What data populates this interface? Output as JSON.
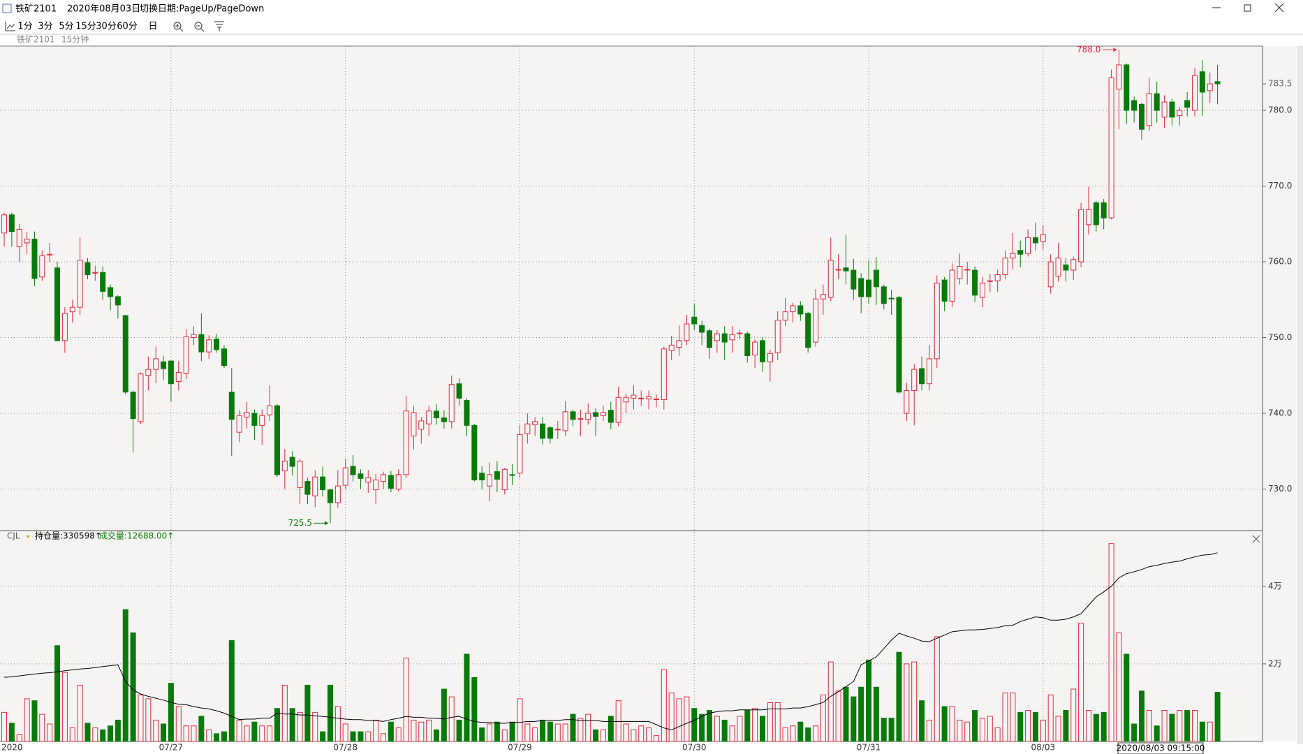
{
  "window": {
    "title": "铁矿2101",
    "date": "2020年08月03日",
    "hint": "切换日期:PageUp/PageDown"
  },
  "toolbar": [
    "1分",
    "3分",
    "5分",
    "15分",
    "30分",
    "60分",
    "日"
  ],
  "subtitle": [
    "铁矿2101",
    "15分钟"
  ],
  "chart_data": {
    "type": "candlestick",
    "categories": [
      "2020",
      null,
      null,
      null,
      null,
      null,
      null,
      null,
      null,
      null,
      null,
      null,
      null,
      null,
      null,
      null,
      null,
      null,
      null,
      null,
      null,
      null,
      "07/27",
      null,
      null,
      null,
      null,
      null,
      null,
      null,
      null,
      null,
      null,
      null,
      null,
      null,
      null,
      null,
      null,
      null,
      null,
      null,
      null,
      null,
      null,
      "07/28",
      null,
      null,
      null,
      null,
      null,
      null,
      null,
      null,
      null,
      null,
      null,
      null,
      null,
      null,
      null,
      null,
      null,
      null,
      null,
      null,
      null,
      null,
      "07/29",
      null,
      null,
      null,
      null,
      null,
      null,
      null,
      null,
      null,
      null,
      null,
      null,
      null,
      null,
      null,
      null,
      null,
      null,
      null,
      null,
      null,
      null,
      "07/30",
      null,
      null,
      null,
      null,
      null,
      null,
      null,
      null,
      null,
      null,
      null,
      null,
      null,
      null,
      null,
      null,
      null,
      null,
      null,
      null,
      null,
      null,
      "07/31",
      null,
      null,
      null,
      null,
      null,
      null,
      null,
      null,
      null,
      null,
      null,
      null,
      null,
      null,
      null,
      null,
      null,
      null,
      null,
      null,
      null,
      null,
      "08/03",
      null,
      null,
      null,
      null,
      null,
      null,
      null,
      null,
      null,
      null,
      null,
      null,
      null,
      null,
      null,
      null,
      null,
      null,
      null,
      null,
      null,
      null,
      null
    ],
    "candles": {
      "open": [
        763.8,
        766.2,
        762,
        762.5,
        763,
        758,
        760.9,
        759.2,
        749.6,
        753.4,
        754,
        759.9,
        758.5,
        758.6,
        756.6,
        755.4,
        752.9,
        742.8,
        738.9,
        745.0,
        745.8,
        746.8,
        746.9,
        744.2,
        745.3,
        750.0,
        750.4,
        748.1,
        749.8,
        748.5,
        742.8,
        737.5,
        739.5,
        740.0,
        738.4,
        739.8,
        741.0,
        732.4,
        734.2,
        730.2,
        731.0,
        729.1,
        731.6,
        729.9,
        728.2,
        730.5,
        733.0,
        732.0,
        730.9,
        729.9,
        731.0,
        731.8,
        730.0,
        731.9,
        737.0,
        737.9,
        738.6,
        740.3,
        739.4,
        738.9,
        743.9,
        741.7,
        738.4,
        732.1,
        730.4,
        732.3,
        729.9,
        731.9,
        732.1,
        737.3,
        738.5,
        738.6,
        738.1,
        737.8,
        737.7,
        740.2,
        739.2,
        739.2,
        740.1,
        739.7,
        740.4,
        738.8,
        741.5,
        742.0,
        741.9,
        741.9,
        741.8,
        741.8,
        748.3,
        748.7,
        749.6,
        752.7,
        751.6,
        750.9,
        749.6,
        750.5,
        749.7,
        750.5,
        750.5,
        747.7,
        749.6,
        746.8,
        748.0,
        752.3,
        753.4,
        754.2,
        753.2,
        749.4,
        755.1,
        755.3,
        758.9,
        759.2,
        758.9,
        757.8,
        757.6,
        758.9,
        756.7,
        755.2,
        755.3,
        740.0,
        743.0,
        745.9,
        743.9,
        747.2,
        757.6,
        754.8,
        757.8,
        758.9,
        758.9,
        755.3,
        757.4,
        757.5,
        758.3,
        760.5,
        761.5,
        761.1,
        763.2,
        762.7,
        756.7,
        758.1,
        759.6,
        758.9,
        760.0,
        764.9,
        767.8,
        767.8,
        765.8,
        782.8,
        786.0,
        781.3,
        780.8,
        778.0,
        782.2,
        779.1,
        781.1,
        779.3,
        781.3,
        780.0,
        785.1,
        782.6,
        783.8
      ],
      "high": [
        766.5,
        766.5,
        765,
        764,
        764,
        761.5,
        762.5,
        760,
        754,
        755,
        763.2,
        760.5,
        759.5,
        759.4,
        757,
        755.6,
        753,
        743,
        745.4,
        747.5,
        748.8,
        747.6,
        747,
        746.9,
        751.1,
        751.5,
        753.2,
        750.3,
        750.5,
        749,
        746,
        740.4,
        741.5,
        740.5,
        740.5,
        743.7,
        741.2,
        735.3,
        735,
        734,
        731.5,
        732.5,
        733,
        730,
        732.5,
        734,
        734.5,
        732.6,
        732.5,
        732,
        732.3,
        732.4,
        732.6,
        742.3,
        741,
        739.5,
        741,
        741.2,
        740.4,
        745,
        744.6,
        742,
        738.6,
        733,
        733.5,
        733.7,
        732.8,
        733.3,
        738.5,
        740,
        739.5,
        739.5,
        738.3,
        739,
        741.6,
        740.5,
        740.5,
        741.3,
        740.7,
        741,
        741.5,
        743.5,
        742.6,
        743.7,
        743,
        743,
        742.5,
        748.8,
        750.2,
        751.6,
        753,
        754.4,
        752.2,
        751.2,
        751,
        751.5,
        751.5,
        751,
        750.8,
        749.8,
        750,
        748.4,
        753.5,
        755.2,
        754.6,
        754.8,
        753.4,
        756.4,
        757,
        763.2,
        761,
        763.6,
        760.4,
        758.5,
        760.2,
        760.6,
        757,
        756.3,
        755.5,
        744,
        746.5,
        747.5,
        749,
        758.2,
        758,
        759.8,
        761.1,
        760,
        759.4,
        758,
        758.4,
        759,
        761.5,
        763.8,
        762.8,
        764.3,
        765.2,
        764.8,
        761,
        762.5,
        760.5,
        760.7,
        767.8,
        769.9,
        768,
        768.3,
        785.4,
        788.0,
        786.2,
        781.8,
        781,
        784.3,
        783.8,
        782,
        781.5,
        780.4,
        782.4,
        785.6,
        786.6,
        785,
        786
      ],
      "low": [
        762,
        762,
        760,
        761,
        756.8,
        757.5,
        760,
        749.5,
        748,
        752,
        753,
        757.7,
        757.5,
        755,
        753.6,
        752.5,
        742.5,
        734.8,
        738.6,
        743,
        744,
        744.4,
        741.5,
        743,
        744.5,
        749,
        746.9,
        747.2,
        748,
        746,
        734.4,
        736.2,
        738,
        736.5,
        735.8,
        739,
        731.6,
        730,
        731.8,
        728,
        728,
        727.6,
        729,
        725.5,
        727.5,
        730,
        731,
        730,
        729.5,
        728,
        730,
        729.6,
        729.7,
        731.5,
        735.2,
        736,
        737,
        738.5,
        738,
        738,
        741,
        737,
        731,
        730,
        728.4,
        729.6,
        729.3,
        730.5,
        731.5,
        736,
        737,
        735.9,
        736,
        736.6,
        737,
        738.3,
        737,
        738.5,
        737,
        739,
        737.9,
        738.3,
        740,
        740.5,
        741,
        740.5,
        740.8,
        740.5,
        747,
        747.6,
        749,
        751,
        749,
        747.2,
        748,
        747,
        748,
        749.8,
        746.7,
        746,
        745.5,
        744.2,
        747,
        751.5,
        752,
        752.2,
        748,
        748.8,
        753,
        754.8,
        757.7,
        757,
        755,
        753.2,
        754.5,
        754.3,
        753.7,
        753,
        742.6,
        739,
        738.4,
        743,
        743,
        746,
        753.5,
        754,
        757,
        757,
        754.7,
        754,
        756,
        756,
        757.7,
        759,
        759.3,
        760.7,
        761.5,
        761.6,
        755.8,
        757.4,
        757.4,
        757.6,
        759.3,
        763.6,
        764,
        764.3,
        765.6,
        777.5,
        778.2,
        778.4,
        776.1,
        777.3,
        778.4,
        777.7,
        778,
        778,
        779.2,
        779.2,
        779.3,
        781,
        780.8
      ],
      "close": [
        766.2,
        764.0,
        764.3,
        763,
        757.8,
        760.8,
        761,
        749.6,
        753.2,
        754.0,
        760.2,
        758.3,
        758.6,
        756.1,
        755.4,
        754.3,
        742.8,
        739.3,
        745.2,
        745.8,
        747.2,
        745.9,
        743.9,
        745.4,
        750.1,
        750.4,
        748.1,
        749.7,
        748.4,
        746.3,
        739.2,
        739.7,
        740.1,
        738.4,
        739.7,
        741.0,
        731.9,
        733.7,
        733.0,
        733.7,
        729.3,
        731.6,
        729.9,
        728.2,
        730.4,
        732.8,
        731.9,
        731.4,
        731.5,
        731.2,
        731.9,
        730.1,
        731.9,
        740.3,
        740.1,
        739.0,
        740.3,
        739.4,
        738.9,
        743.8,
        742.0,
        738.4,
        731.2,
        731.2,
        731.9,
        731.3,
        732.6,
        731.8,
        737.2,
        738.6,
        738.9,
        736.7,
        736.7,
        737.9,
        740.2,
        739.2,
        739.3,
        740.0,
        739.6,
        740.1,
        738.8,
        742.1,
        742.1,
        742.4,
        742.0,
        742.2,
        741.9,
        748.5,
        749.0,
        749.6,
        751.8,
        751.8,
        750.7,
        748.7,
        750.5,
        749.4,
        750.4,
        750.6,
        747.6,
        749.4,
        746.8,
        747.9,
        752.3,
        753.4,
        754.2,
        753.1,
        748.7,
        755.1,
        755.7,
        760.2,
        759.0,
        758.8,
        756.4,
        755.4,
        755.4,
        756.7,
        754.5,
        755.1,
        742.8,
        743.0,
        745.8,
        743.9,
        747.2,
        757.2,
        754.8,
        758.9,
        759.4,
        759.0,
        755.6,
        757.2,
        757.5,
        758.3,
        760.5,
        761.1,
        761.0,
        763.2,
        762.5,
        763.6,
        760.0,
        760.5,
        758.9,
        760.3,
        766.9,
        766.9,
        764.9,
        765.8,
        784.3,
        786.0,
        780.0,
        780.0,
        777.5,
        782.2,
        780.0,
        781.1,
        779.1,
        780.0,
        780.4,
        784.6,
        782.4,
        783.5,
        783.5
      ]
    },
    "up_color": "#e0283a",
    "down_color": "#0a7a0a",
    "ylim": [
      724.7,
      788.3
    ],
    "yticks": [
      {
        "value": 730,
        "label": "730.0"
      },
      {
        "value": 740,
        "label": "740.0"
      },
      {
        "value": 750,
        "label": "750.0"
      },
      {
        "value": 760,
        "label": "760.0"
      },
      {
        "value": 770,
        "label": "770.0"
      },
      {
        "value": 780,
        "label": "780.0"
      }
    ],
    "last_price": {
      "value": 783.5,
      "label": "783.5"
    },
    "high_label": "788.0",
    "low_label": "725.5",
    "grid": true,
    "cjl_label": "CJL",
    "open_interest_label": "持仓量:330598↑",
    "volume_label": "成交量:12688.00↑",
    "volume": {
      "ylim": [
        0,
        54000
      ],
      "yticks": [
        {
          "value": 20000,
          "label": "2万"
        },
        {
          "value": 40000,
          "label": "4万"
        }
      ],
      "values": [
        7500,
        4700,
        1700,
        11000,
        10500,
        7000,
        4500,
        24700,
        17800,
        3500,
        14500,
        4700,
        3500,
        3000,
        4000,
        5500,
        34000,
        28000,
        12000,
        11000,
        5500,
        4500,
        15000,
        9000,
        4000,
        4000,
        6500,
        3000,
        2000,
        2500,
        26000,
        5500,
        4000,
        5000,
        4000,
        4000,
        8500,
        14500,
        8500,
        7500,
        14500,
        7500,
        2500,
        14500,
        9000,
        4500,
        2500,
        2500,
        2500,
        5500,
        2000,
        5000,
        3500,
        21500,
        5500,
        5000,
        5500,
        3000,
        13500,
        11500,
        5500,
        22500,
        16500,
        3500,
        4500,
        5000,
        3000,
        5000,
        11000,
        4500,
        3500,
        5500,
        5000,
        4500,
        4500,
        7000,
        6000,
        7000,
        3000,
        3000,
        6500,
        10500,
        4500,
        3000,
        4000,
        3500,
        1500,
        18500,
        12500,
        11000,
        11500,
        8500,
        7000,
        8000,
        6500,
        5500,
        4000,
        6500,
        8000,
        8500,
        6500,
        10000,
        10000,
        3500,
        4000,
        5000,
        3500,
        4000,
        12000,
        20500,
        13000,
        14000,
        11500,
        14000,
        21000,
        14000,
        6000,
        6000,
        23000,
        20000,
        20500,
        10500,
        5500,
        27000,
        9000,
        9000,
        5500,
        5000,
        8000,
        6000,
        6500,
        3500,
        12500,
        12500,
        7500,
        8000,
        7500,
        5500,
        12000,
        6500,
        8000,
        13500,
        30500,
        8000,
        7000,
        7500,
        51000,
        28000,
        22500,
        4500,
        13000,
        8000,
        4000,
        8000,
        7000,
        8000,
        8000,
        8000,
        5000,
        5000,
        12688
      ]
    },
    "open_interest": {
      "color": "#000000",
      "y2lim": [
        290000,
        335070
      ],
      "values": [
        303800,
        303900,
        304100,
        304300,
        304500,
        304700,
        304800,
        305000,
        305200,
        305400,
        305600,
        305700,
        305900,
        306100,
        306300,
        306500,
        302900,
        301100,
        300200,
        299700,
        299300,
        298900,
        298400,
        298000,
        297900,
        297500,
        297200,
        297000,
        296600,
        296100,
        295400,
        294700,
        294800,
        294800,
        295000,
        295000,
        296100,
        295900,
        295900,
        295700,
        295700,
        295500,
        295400,
        295200,
        295000,
        294800,
        294700,
        294700,
        294500,
        294500,
        294300,
        294700,
        295000,
        295400,
        295200,
        295200,
        295000,
        295000,
        294800,
        295200,
        295400,
        294800,
        294300,
        294100,
        294100,
        293900,
        293900,
        294100,
        294100,
        294300,
        294300,
        294500,
        294500,
        294500,
        294700,
        294700,
        294500,
        294500,
        294500,
        294300,
        294300,
        294300,
        294300,
        294300,
        294300,
        294300,
        293600,
        292900,
        292500,
        293200,
        293900,
        294500,
        295400,
        296100,
        296400,
        296600,
        296600,
        296800,
        296800,
        296800,
        296800,
        297000,
        297000,
        297000,
        297200,
        297200,
        297500,
        297900,
        298400,
        299700,
        300700,
        301800,
        302900,
        306500,
        307300,
        308200,
        310000,
        311800,
        313300,
        312700,
        312200,
        311600,
        311500,
        312200,
        312900,
        313600,
        313800,
        314000,
        314000,
        314100,
        314300,
        314500,
        314900,
        315000,
        315800,
        316300,
        316800,
        316600,
        316100,
        316100,
        316300,
        316800,
        317500,
        319300,
        321100,
        322200,
        323400,
        325200,
        326100,
        326500,
        327000,
        327600,
        327900,
        328300,
        328600,
        328800,
        329300,
        329700,
        330100,
        330200,
        330598
      ]
    },
    "cursor_label": "2020/08/03 09:15:00"
  }
}
